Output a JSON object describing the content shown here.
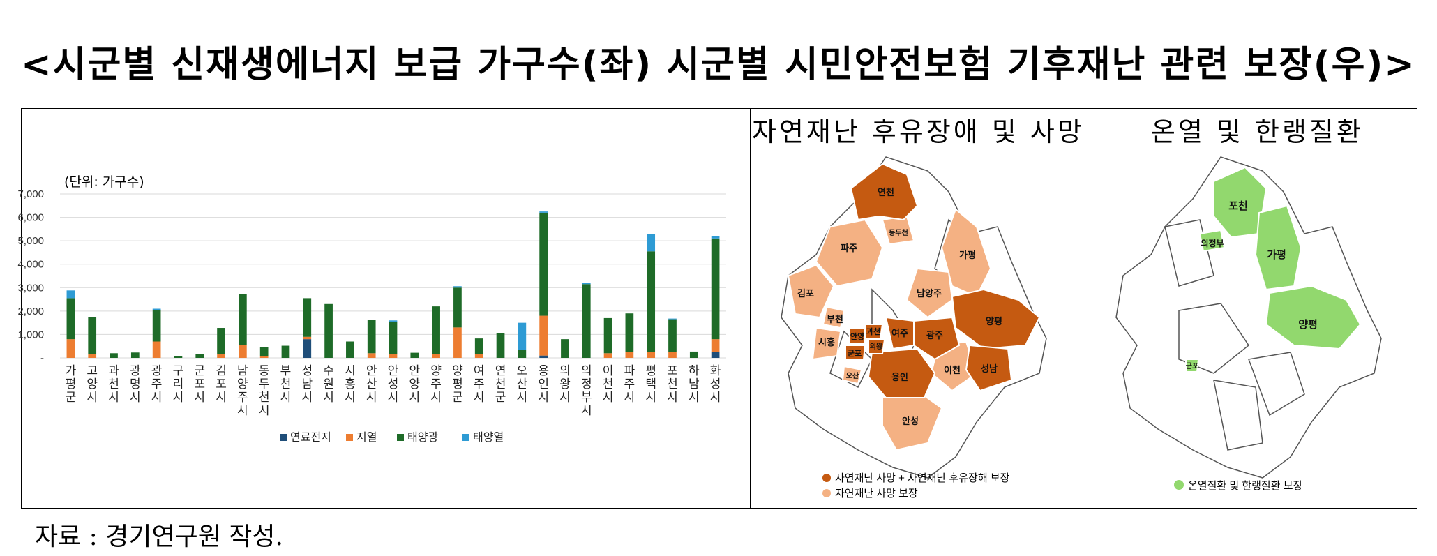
{
  "title": "<시군별 신재생에너지 보급 가구수(좌) 시군별 시민안전보험 기후재난 관련 보장(우)>",
  "source": "자료 : 경기연구원 작성.",
  "left_map_title": "자연재난 후유장애 및 사망",
  "right_map_title": "온열 및 한랭질환",
  "left_map_legend": [
    "자연재난 사망 + 자연재난 후유장해 보장",
    "자연재난 사망 보장"
  ],
  "right_map_legend": [
    "온열질환 및 한랭질환 보장"
  ],
  "left_map_regions_dark": [
    "연천",
    "양평",
    "광주",
    "성남",
    "여주",
    "용인",
    "과천",
    "의왕",
    "안양",
    "군포"
  ],
  "left_map_regions_light": [
    "파주",
    "동두천",
    "김포",
    "가평",
    "남양주",
    "부천",
    "시흥",
    "오산",
    "이천",
    "안성"
  ],
  "right_map_regions": [
    "포천",
    "가평",
    "의정부",
    "양평",
    "군포"
  ],
  "colors": {
    "dark_region": "#c55a11",
    "light_region": "#f4b183",
    "green_region": "#92d86e"
  },
  "chart_data": {
    "type": "bar",
    "stacked": true,
    "unit_label": "(단위: 가구수)",
    "ytick_labels": [
      "7,000",
      "6,000",
      "5,000",
      "4,000",
      "3,000",
      "2,000",
      "1,000",
      "-"
    ],
    "ylim": [
      0,
      7000
    ],
    "grid": true,
    "legend_position": "bottom",
    "categories": [
      "가평군",
      "고양시",
      "과천시",
      "광명시",
      "광주시",
      "구리시",
      "군포시",
      "김포시",
      "남양주시",
      "동두천시",
      "부천시",
      "성남시",
      "수원시",
      "시흥시",
      "안산시",
      "안성시",
      "안양시",
      "양주시",
      "양평군",
      "여주시",
      "연천군",
      "오산시",
      "용인시",
      "의왕시",
      "의정부시",
      "이천시",
      "파주시",
      "평택시",
      "포천시",
      "하남시",
      "화성시"
    ],
    "series": [
      {
        "name": "연료전지",
        "color": "#1f4e79",
        "values": [
          0,
          0,
          0,
          0,
          0,
          0,
          0,
          0,
          0,
          0,
          0,
          800,
          0,
          0,
          0,
          0,
          0,
          0,
          0,
          0,
          0,
          0,
          100,
          0,
          0,
          0,
          0,
          0,
          0,
          0,
          250
        ]
      },
      {
        "name": "지열",
        "color": "#ed7d31",
        "values": [
          800,
          150,
          0,
          0,
          700,
          0,
          0,
          150,
          550,
          80,
          0,
          100,
          0,
          0,
          200,
          150,
          0,
          150,
          1300,
          150,
          0,
          0,
          1700,
          0,
          0,
          200,
          250,
          250,
          250,
          0,
          550
        ]
      },
      {
        "name": "태양광",
        "color": "#1e6b28",
        "values": [
          1750,
          1580,
          200,
          230,
          1350,
          60,
          150,
          1130,
          2170,
          380,
          520,
          1650,
          2300,
          700,
          1420,
          1400,
          220,
          2050,
          1700,
          680,
          1050,
          350,
          4400,
          800,
          3150,
          1500,
          1650,
          4300,
          1400,
          270,
          4300
        ]
      },
      {
        "name": "태양열",
        "color": "#2e9bd4",
        "values": [
          330,
          0,
          0,
          0,
          50,
          0,
          0,
          0,
          0,
          0,
          0,
          0,
          0,
          0,
          0,
          50,
          0,
          0,
          60,
          0,
          0,
          1150,
          50,
          0,
          50,
          0,
          0,
          730,
          30,
          0,
          100
        ]
      }
    ]
  }
}
